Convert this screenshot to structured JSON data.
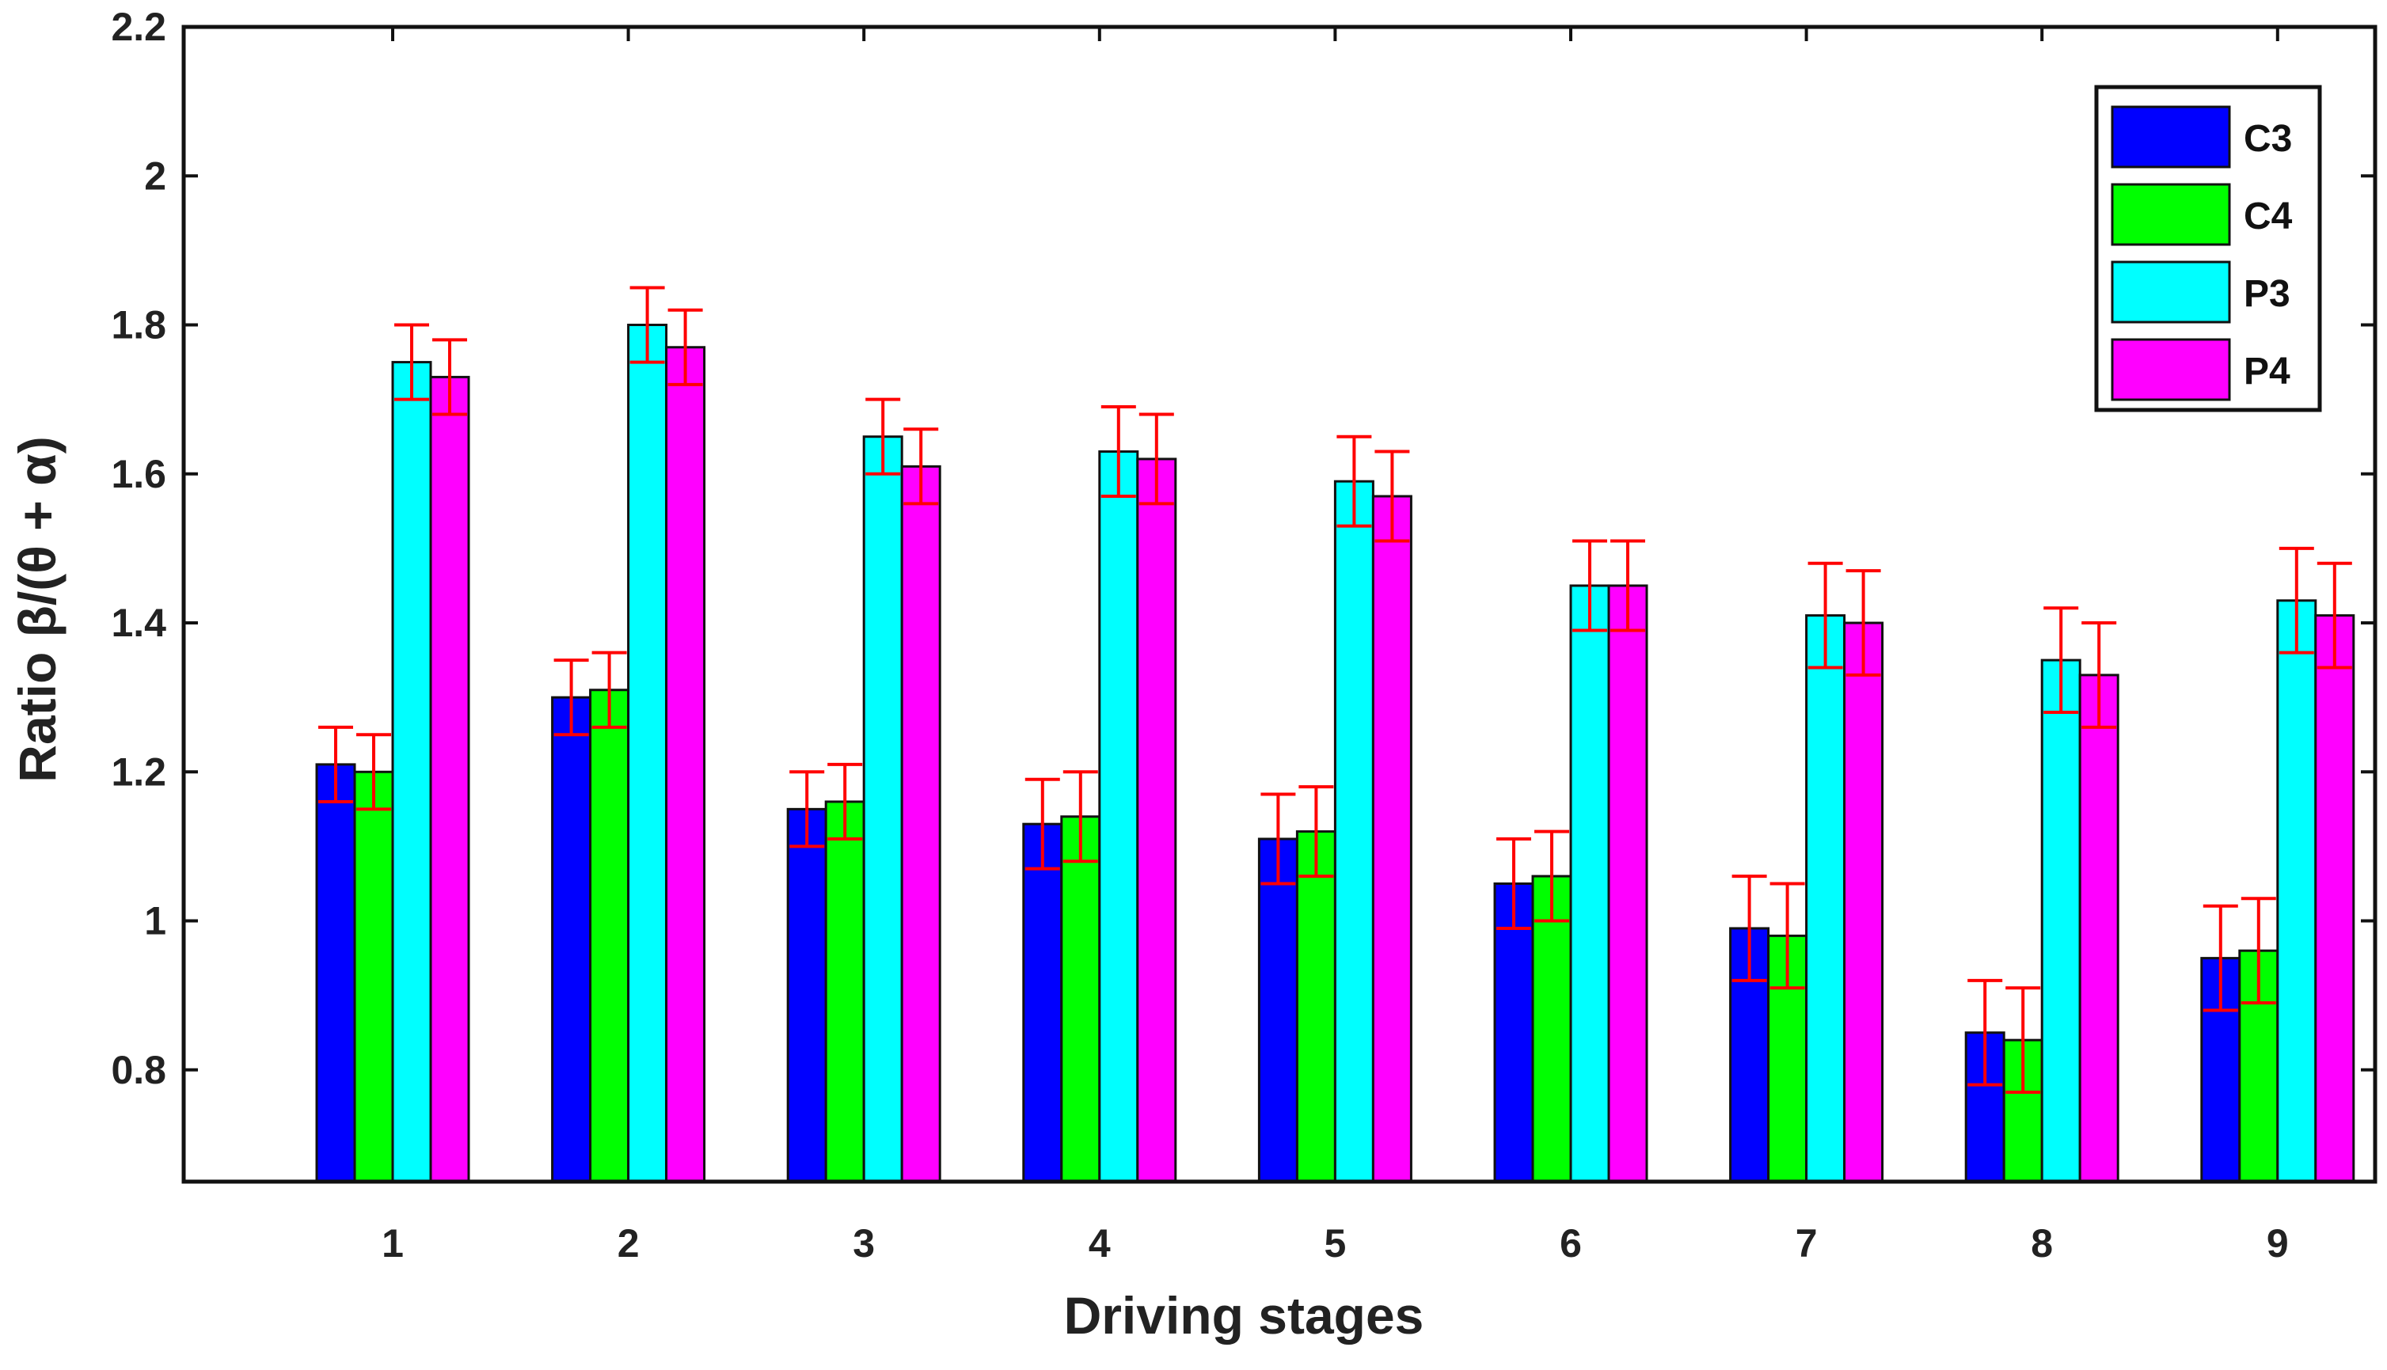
{
  "chart_data": {
    "type": "bar",
    "title": "",
    "xlabel": "Driving stages",
    "ylabel": "Ratio β/(θ + α)",
    "categories": [
      "1",
      "2",
      "3",
      "4",
      "5",
      "6",
      "7",
      "8",
      "9"
    ],
    "ylim": [
      0.65,
      2.2
    ],
    "yticks": [
      0.8,
      1,
      1.2,
      1.4,
      1.6,
      1.8,
      2,
      2.2
    ],
    "ytick_labels": [
      "0.8",
      "1",
      "1.2",
      "1.4",
      "1.6",
      "1.8",
      "2",
      "2.2"
    ],
    "legend_position": "top-right",
    "error_bar_color": "#ff0000",
    "series": [
      {
        "name": "C3",
        "color": "#0000ff",
        "values": [
          1.21,
          1.3,
          1.15,
          1.13,
          1.11,
          1.05,
          0.99,
          0.85,
          0.95
        ],
        "errors": [
          0.05,
          0.05,
          0.05,
          0.06,
          0.06,
          0.06,
          0.07,
          0.07,
          0.07
        ]
      },
      {
        "name": "C4",
        "color": "#00ff00",
        "values": [
          1.2,
          1.31,
          1.16,
          1.14,
          1.12,
          1.06,
          0.98,
          0.84,
          0.96
        ],
        "errors": [
          0.05,
          0.05,
          0.05,
          0.06,
          0.06,
          0.06,
          0.07,
          0.07,
          0.07
        ]
      },
      {
        "name": "P3",
        "color": "#00ffff",
        "values": [
          1.75,
          1.8,
          1.65,
          1.63,
          1.59,
          1.45,
          1.41,
          1.35,
          1.43
        ],
        "errors": [
          0.05,
          0.05,
          0.05,
          0.06,
          0.06,
          0.06,
          0.07,
          0.07,
          0.07
        ]
      },
      {
        "name": "P4",
        "color": "#ff00ff",
        "values": [
          1.73,
          1.77,
          1.61,
          1.62,
          1.57,
          1.45,
          1.4,
          1.33,
          1.41
        ],
        "errors": [
          0.05,
          0.05,
          0.05,
          0.06,
          0.06,
          0.06,
          0.07,
          0.07,
          0.07
        ]
      }
    ]
  }
}
